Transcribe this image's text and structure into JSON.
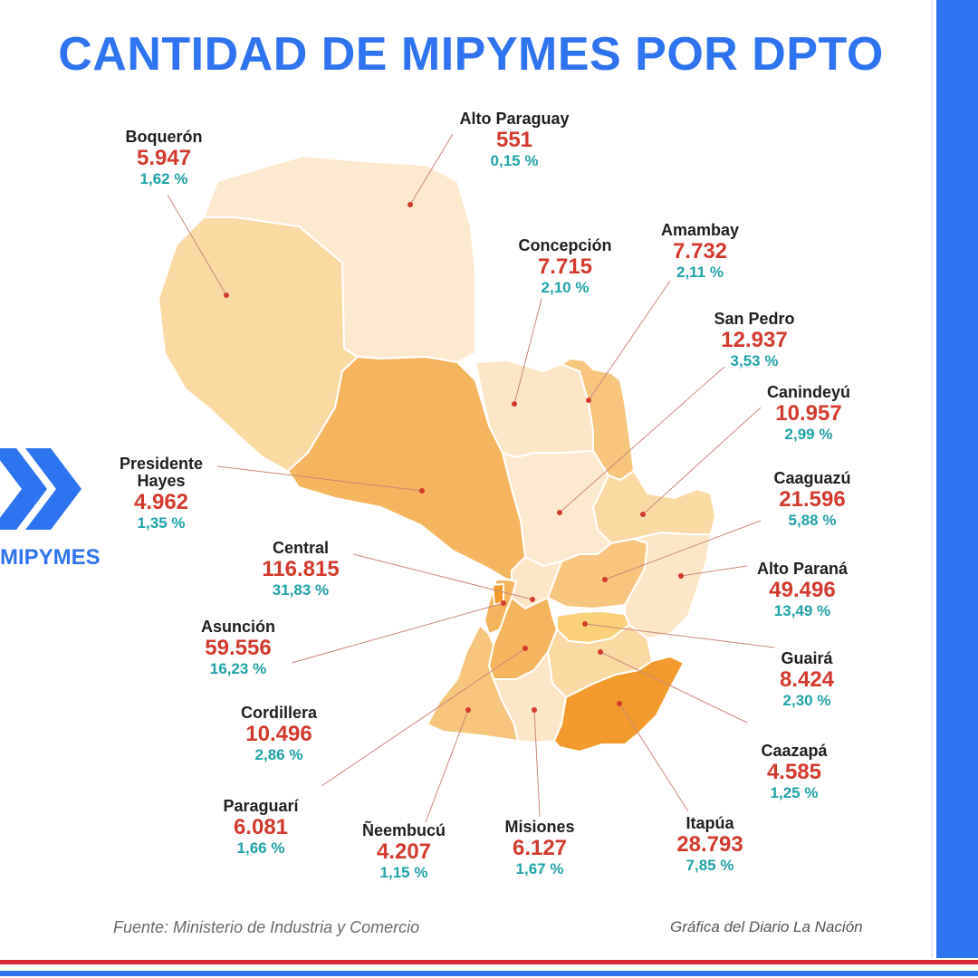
{
  "title": "CANTIDAD DE MIPYMES POR DPTO",
  "side_label": "MIPYMES",
  "footer": {
    "source": "Fuente: Ministerio de Industria y Comercio",
    "credit": "Gráfica del Diario La Nación"
  },
  "colors": {
    "title": "#2e74f0",
    "name": "#1f1f1f",
    "count": "#d33a2c",
    "percent": "#1fa3a8",
    "map_lightest": "#fde9cd",
    "map_light": "#fbd9a3",
    "map_medium": "#f7c57d",
    "map_strong": "#f5b45e",
    "map_darkest": "#f29b2c"
  },
  "departments": [
    {
      "name": "Boquerón",
      "count": "5.947",
      "percent": "1,62 %",
      "count_value": 5947,
      "percent_value": 1.62
    },
    {
      "name": "Alto Paraguay",
      "count": "551",
      "percent": "0,15 %",
      "count_value": 551,
      "percent_value": 0.15
    },
    {
      "name": "Concepción",
      "count": "7.715",
      "percent": "2,10 %",
      "count_value": 7715,
      "percent_value": 2.1
    },
    {
      "name": "Amambay",
      "count": "7.732",
      "percent": "2,11 %",
      "count_value": 7732,
      "percent_value": 2.11
    },
    {
      "name": "San Pedro",
      "count": "12.937",
      "percent": "3,53 %",
      "count_value": 12937,
      "percent_value": 3.53
    },
    {
      "name": "Canindeyú",
      "count": "10.957",
      "percent": "2,99 %",
      "count_value": 10957,
      "percent_value": 2.99
    },
    {
      "name": "Presidente Hayes",
      "count": "4.962",
      "percent": "1,35 %",
      "count_value": 4962,
      "percent_value": 1.35
    },
    {
      "name": "Caaguazú",
      "count": "21.596",
      "percent": "5,88 %",
      "count_value": 21596,
      "percent_value": 5.88
    },
    {
      "name": "Central",
      "count": "116.815",
      "percent": "31,83 %",
      "count_value": 116815,
      "percent_value": 31.83
    },
    {
      "name": "Alto Paraná",
      "count": "49.496",
      "percent": "13,49 %",
      "count_value": 49496,
      "percent_value": 13.49
    },
    {
      "name": "Asunción",
      "count": "59.556",
      "percent": "16,23 %",
      "count_value": 59556,
      "percent_value": 16.23
    },
    {
      "name": "Guairá",
      "count": "8.424",
      "percent": "2,30 %",
      "count_value": 8424,
      "percent_value": 2.3
    },
    {
      "name": "Cordillera",
      "count": "10.496",
      "percent": "2,86 %",
      "count_value": 10496,
      "percent_value": 2.86
    },
    {
      "name": "Caazapá",
      "count": "4.585",
      "percent": "1,25 %",
      "count_value": 4585,
      "percent_value": 1.25
    },
    {
      "name": "Paraguarí",
      "count": "6.081",
      "percent": "1,66 %",
      "count_value": 6081,
      "percent_value": 1.66
    },
    {
      "name": "Ñeembucú",
      "count": "4.207",
      "percent": "1,15 %",
      "count_value": 4207,
      "percent_value": 1.15
    },
    {
      "name": "Misiones",
      "count": "6.127",
      "percent": "1,67 %",
      "count_value": 6127,
      "percent_value": 1.67
    },
    {
      "name": "Itapúa",
      "count": "28.793",
      "percent": "7,85 %",
      "count_value": 28793,
      "percent_value": 7.85
    }
  ]
}
